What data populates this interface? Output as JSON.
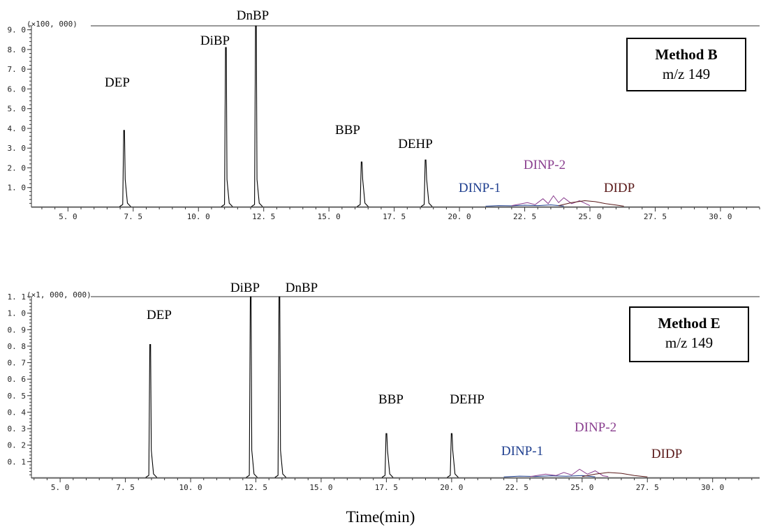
{
  "chart_data": [
    {
      "type": "line",
      "scale_label": "(×100, 000)",
      "method_box": {
        "title": "Method B",
        "subtitle": "m/z 149"
      },
      "xlim": [
        3.6,
        31.5
      ],
      "ylim": [
        0,
        9.2
      ],
      "x_ticks": [
        "5. 0",
        "7. 5",
        "10. 0",
        "12. 5",
        "15. 0",
        "17. 5",
        "20. 0",
        "22. 5",
        "25. 0",
        "27. 5",
        "30. 0"
      ],
      "x_tick_values": [
        5.0,
        7.5,
        10.0,
        12.5,
        15.0,
        17.5,
        20.0,
        22.5,
        25.0,
        27.5,
        30.0
      ],
      "y_ticks": [
        "1. 0",
        "2. 0",
        "3. 0",
        "4. 0",
        "5. 0",
        "6. 0",
        "7. 0",
        "8. 0",
        "9. 0"
      ],
      "y_tick_values": [
        1.0,
        2.0,
        3.0,
        4.0,
        5.0,
        6.0,
        7.0,
        8.0,
        9.0
      ],
      "peaks": [
        {
          "name": "DEP",
          "rt": 7.15,
          "height": 3.9,
          "color": "#000000"
        },
        {
          "name": "DiBP",
          "rt": 11.05,
          "height": 8.1,
          "color": "#000000"
        },
        {
          "name": "DnBP",
          "rt": 12.2,
          "height": 9.3,
          "color": "#000000"
        },
        {
          "name": "BBP",
          "rt": 16.25,
          "height": 2.3,
          "color": "#000000"
        },
        {
          "name": "DEHP",
          "rt": 18.7,
          "height": 2.4,
          "color": "#000000"
        }
      ],
      "clusters": [
        {
          "name": "DINP-1",
          "color": "#1f3f8f",
          "range": [
            21.0,
            24.0
          ],
          "values": [
            [
              21.0,
              0.02
            ],
            [
              21.5,
              0.05
            ],
            [
              22.0,
              0.04
            ],
            [
              22.5,
              0.07
            ],
            [
              23.0,
              0.05
            ],
            [
              23.5,
              0.09
            ],
            [
              24.0,
              0.03
            ]
          ]
        },
        {
          "name": "DINP-2",
          "color": "#8a3f8f",
          "range": [
            22.0,
            25.0
          ],
          "values": [
            [
              22.0,
              0.05
            ],
            [
              22.6,
              0.2
            ],
            [
              22.9,
              0.1
            ],
            [
              23.2,
              0.4
            ],
            [
              23.4,
              0.15
            ],
            [
              23.6,
              0.55
            ],
            [
              23.8,
              0.2
            ],
            [
              24.0,
              0.45
            ],
            [
              24.3,
              0.15
            ],
            [
              24.6,
              0.3
            ],
            [
              25.0,
              0.05
            ]
          ]
        },
        {
          "name": "DIDP",
          "color": "#5a1a1a",
          "range": [
            23.8,
            26.3
          ],
          "values": [
            [
              23.8,
              0.05
            ],
            [
              24.3,
              0.2
            ],
            [
              24.8,
              0.3
            ],
            [
              25.2,
              0.25
            ],
            [
              25.6,
              0.15
            ],
            [
              26.0,
              0.08
            ],
            [
              26.3,
              0.02
            ]
          ]
        }
      ]
    },
    {
      "type": "line",
      "scale_label": "(×1, 000, 000)",
      "method_box": {
        "title": "Method E",
        "subtitle": "m/z 149"
      },
      "xlim": [
        3.9,
        31.8
      ],
      "ylim": [
        0,
        1.1
      ],
      "x_ticks": [
        "5. 0",
        "7. 5",
        "10. 0",
        "12. 5",
        "15. 0",
        "17. 5",
        "20. 0",
        "22. 5",
        "25. 0",
        "27. 5",
        "30. 0"
      ],
      "x_tick_values": [
        5.0,
        7.5,
        10.0,
        12.5,
        15.0,
        17.5,
        20.0,
        22.5,
        25.0,
        27.5,
        30.0
      ],
      "y_ticks": [
        "0. 1",
        "0. 2",
        "0. 3",
        "0. 4",
        "0. 5",
        "0. 6",
        "0. 7",
        "0. 8",
        "0. 9",
        "1. 0",
        "1. 1"
      ],
      "y_tick_values": [
        0.1,
        0.2,
        0.3,
        0.4,
        0.5,
        0.6,
        0.7,
        0.8,
        0.9,
        1.0,
        1.1
      ],
      "peaks": [
        {
          "name": "DEP",
          "rt": 8.45,
          "height": 0.81,
          "color": "#000000"
        },
        {
          "name": "DiBP",
          "rt": 12.3,
          "height": 1.1,
          "color": "#000000"
        },
        {
          "name": "DnBP",
          "rt": 13.4,
          "height": 1.1,
          "color": "#000000"
        },
        {
          "name": "BBP",
          "rt": 17.5,
          "height": 0.27,
          "color": "#000000"
        },
        {
          "name": "DEHP",
          "rt": 20.0,
          "height": 0.27,
          "color": "#000000"
        }
      ],
      "clusters": [
        {
          "name": "DINP-1",
          "color": "#1f3f8f",
          "range": [
            22.0,
            25.5
          ],
          "values": [
            [
              22.0,
              0.003
            ],
            [
              22.6,
              0.008
            ],
            [
              23.2,
              0.006
            ],
            [
              23.8,
              0.01
            ],
            [
              24.4,
              0.007
            ],
            [
              25.0,
              0.012
            ],
            [
              25.5,
              0.004
            ]
          ]
        },
        {
          "name": "DINP-2",
          "color": "#8a3f8f",
          "range": [
            23.0,
            26.0
          ],
          "values": [
            [
              23.0,
              0.005
            ],
            [
              23.6,
              0.02
            ],
            [
              24.0,
              0.012
            ],
            [
              24.3,
              0.03
            ],
            [
              24.6,
              0.015
            ],
            [
              24.9,
              0.05
            ],
            [
              25.2,
              0.02
            ],
            [
              25.5,
              0.04
            ],
            [
              25.8,
              0.01
            ],
            [
              26.0,
              0.005
            ]
          ]
        },
        {
          "name": "DIDP",
          "color": "#5a1a1a",
          "range": [
            25.0,
            27.5
          ],
          "values": [
            [
              25.0,
              0.005
            ],
            [
              25.5,
              0.02
            ],
            [
              26.0,
              0.03
            ],
            [
              26.5,
              0.025
            ],
            [
              27.0,
              0.012
            ],
            [
              27.5,
              0.003
            ]
          ]
        }
      ]
    }
  ],
  "xlabel": "Time(min)"
}
